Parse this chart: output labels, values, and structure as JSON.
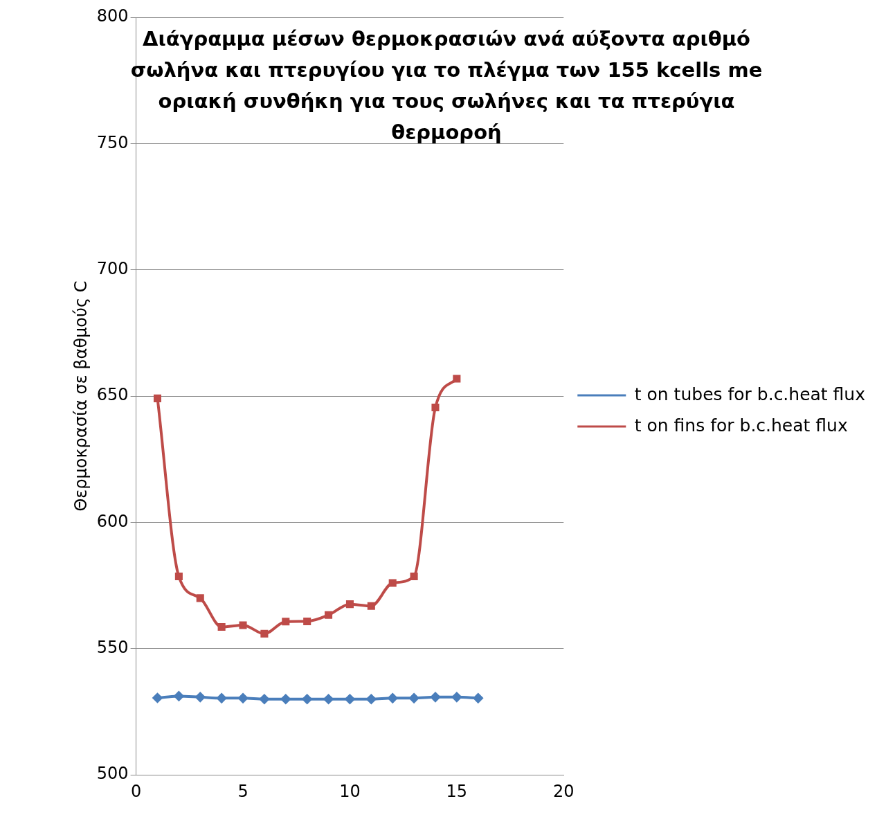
{
  "chart_data": {
    "type": "line",
    "title": "Διάγραμμα μέσων θερμοκρασιών ανά αύξοντα αριθμό σωλήνα και πτερυγίου για το πλέγμα των 155 kcells me οριακή συνθήκη για τους σωλήνες και τα πτερύγια θερμοροή",
    "ylabel": "Θερμοκρασία σε βαθμούς C",
    "series": [
      {
        "name": "t on tubes for b.c.heat flux",
        "color": "#4a7ebb",
        "marker": "diamond",
        "x": [
          1,
          2,
          3,
          4,
          5,
          6,
          7,
          8,
          9,
          10,
          11,
          12,
          13,
          14,
          15,
          16
        ],
        "values": [
          530.5,
          531.2,
          530.8,
          530.4,
          530.4,
          530,
          530,
          530,
          530,
          530,
          530,
          530.4,
          530.4,
          530.8,
          530.8,
          530.4
        ]
      },
      {
        "name": "t on fins for b.c.heat flux",
        "color": "#be4b48",
        "marker": "square",
        "x": [
          1,
          2,
          3,
          4,
          5,
          6,
          7,
          8,
          9,
          10,
          11,
          12,
          13,
          14,
          15
        ],
        "values": [
          649.1,
          578.6,
          570,
          558.6,
          559.3,
          555.9,
          560.7,
          560.8,
          563.3,
          567.6,
          566.9,
          576,
          578.6,
          645.5,
          656.9
        ]
      }
    ],
    "xlim": [
      0,
      20
    ],
    "xticks": [
      0,
      5,
      10,
      15,
      20
    ],
    "ylim": [
      500,
      800
    ],
    "yticks": [
      500,
      550,
      600,
      650,
      700,
      750,
      800
    ],
    "grid": "y",
    "legend": "right"
  }
}
